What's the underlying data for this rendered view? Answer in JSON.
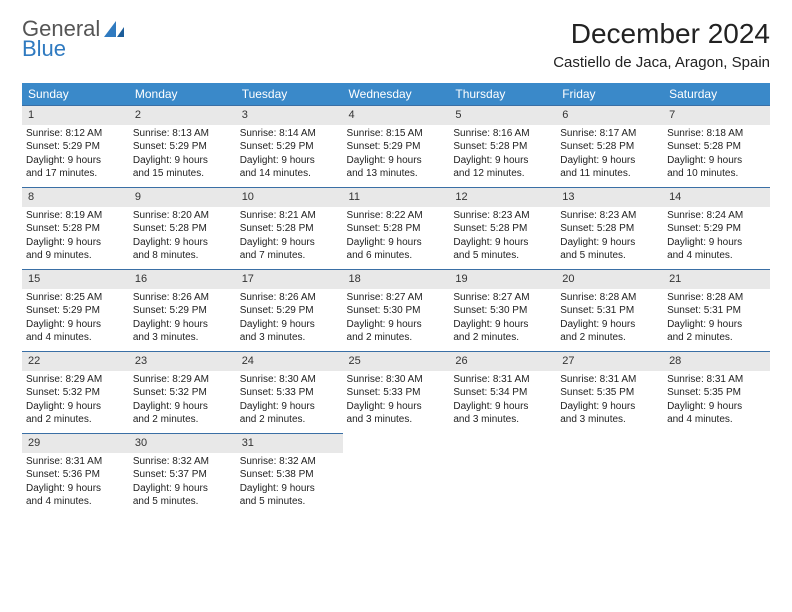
{
  "logo": {
    "text1": "General",
    "text2": "Blue"
  },
  "title": "December 2024",
  "location": "Castiello de Jaca, Aragon, Spain",
  "colors": {
    "header_bg": "#3a89c9",
    "header_fg": "#ffffff",
    "daynum_bg": "#e8e8e8",
    "rule": "#3a6fa5",
    "logo_gray": "#555555",
    "logo_blue": "#2f7ac0"
  },
  "weekdays": [
    "Sunday",
    "Monday",
    "Tuesday",
    "Wednesday",
    "Thursday",
    "Friday",
    "Saturday"
  ],
  "weeks": [
    [
      {
        "day": "1",
        "sunrise": "Sunrise: 8:12 AM",
        "sunset": "Sunset: 5:29 PM",
        "dl1": "Daylight: 9 hours",
        "dl2": "and 17 minutes."
      },
      {
        "day": "2",
        "sunrise": "Sunrise: 8:13 AM",
        "sunset": "Sunset: 5:29 PM",
        "dl1": "Daylight: 9 hours",
        "dl2": "and 15 minutes."
      },
      {
        "day": "3",
        "sunrise": "Sunrise: 8:14 AM",
        "sunset": "Sunset: 5:29 PM",
        "dl1": "Daylight: 9 hours",
        "dl2": "and 14 minutes."
      },
      {
        "day": "4",
        "sunrise": "Sunrise: 8:15 AM",
        "sunset": "Sunset: 5:29 PM",
        "dl1": "Daylight: 9 hours",
        "dl2": "and 13 minutes."
      },
      {
        "day": "5",
        "sunrise": "Sunrise: 8:16 AM",
        "sunset": "Sunset: 5:28 PM",
        "dl1": "Daylight: 9 hours",
        "dl2": "and 12 minutes."
      },
      {
        "day": "6",
        "sunrise": "Sunrise: 8:17 AM",
        "sunset": "Sunset: 5:28 PM",
        "dl1": "Daylight: 9 hours",
        "dl2": "and 11 minutes."
      },
      {
        "day": "7",
        "sunrise": "Sunrise: 8:18 AM",
        "sunset": "Sunset: 5:28 PM",
        "dl1": "Daylight: 9 hours",
        "dl2": "and 10 minutes."
      }
    ],
    [
      {
        "day": "8",
        "sunrise": "Sunrise: 8:19 AM",
        "sunset": "Sunset: 5:28 PM",
        "dl1": "Daylight: 9 hours",
        "dl2": "and 9 minutes."
      },
      {
        "day": "9",
        "sunrise": "Sunrise: 8:20 AM",
        "sunset": "Sunset: 5:28 PM",
        "dl1": "Daylight: 9 hours",
        "dl2": "and 8 minutes."
      },
      {
        "day": "10",
        "sunrise": "Sunrise: 8:21 AM",
        "sunset": "Sunset: 5:28 PM",
        "dl1": "Daylight: 9 hours",
        "dl2": "and 7 minutes."
      },
      {
        "day": "11",
        "sunrise": "Sunrise: 8:22 AM",
        "sunset": "Sunset: 5:28 PM",
        "dl1": "Daylight: 9 hours",
        "dl2": "and 6 minutes."
      },
      {
        "day": "12",
        "sunrise": "Sunrise: 8:23 AM",
        "sunset": "Sunset: 5:28 PM",
        "dl1": "Daylight: 9 hours",
        "dl2": "and 5 minutes."
      },
      {
        "day": "13",
        "sunrise": "Sunrise: 8:23 AM",
        "sunset": "Sunset: 5:28 PM",
        "dl1": "Daylight: 9 hours",
        "dl2": "and 5 minutes."
      },
      {
        "day": "14",
        "sunrise": "Sunrise: 8:24 AM",
        "sunset": "Sunset: 5:29 PM",
        "dl1": "Daylight: 9 hours",
        "dl2": "and 4 minutes."
      }
    ],
    [
      {
        "day": "15",
        "sunrise": "Sunrise: 8:25 AM",
        "sunset": "Sunset: 5:29 PM",
        "dl1": "Daylight: 9 hours",
        "dl2": "and 4 minutes."
      },
      {
        "day": "16",
        "sunrise": "Sunrise: 8:26 AM",
        "sunset": "Sunset: 5:29 PM",
        "dl1": "Daylight: 9 hours",
        "dl2": "and 3 minutes."
      },
      {
        "day": "17",
        "sunrise": "Sunrise: 8:26 AM",
        "sunset": "Sunset: 5:29 PM",
        "dl1": "Daylight: 9 hours",
        "dl2": "and 3 minutes."
      },
      {
        "day": "18",
        "sunrise": "Sunrise: 8:27 AM",
        "sunset": "Sunset: 5:30 PM",
        "dl1": "Daylight: 9 hours",
        "dl2": "and 2 minutes."
      },
      {
        "day": "19",
        "sunrise": "Sunrise: 8:27 AM",
        "sunset": "Sunset: 5:30 PM",
        "dl1": "Daylight: 9 hours",
        "dl2": "and 2 minutes."
      },
      {
        "day": "20",
        "sunrise": "Sunrise: 8:28 AM",
        "sunset": "Sunset: 5:31 PM",
        "dl1": "Daylight: 9 hours",
        "dl2": "and 2 minutes."
      },
      {
        "day": "21",
        "sunrise": "Sunrise: 8:28 AM",
        "sunset": "Sunset: 5:31 PM",
        "dl1": "Daylight: 9 hours",
        "dl2": "and 2 minutes."
      }
    ],
    [
      {
        "day": "22",
        "sunrise": "Sunrise: 8:29 AM",
        "sunset": "Sunset: 5:32 PM",
        "dl1": "Daylight: 9 hours",
        "dl2": "and 2 minutes."
      },
      {
        "day": "23",
        "sunrise": "Sunrise: 8:29 AM",
        "sunset": "Sunset: 5:32 PM",
        "dl1": "Daylight: 9 hours",
        "dl2": "and 2 minutes."
      },
      {
        "day": "24",
        "sunrise": "Sunrise: 8:30 AM",
        "sunset": "Sunset: 5:33 PM",
        "dl1": "Daylight: 9 hours",
        "dl2": "and 2 minutes."
      },
      {
        "day": "25",
        "sunrise": "Sunrise: 8:30 AM",
        "sunset": "Sunset: 5:33 PM",
        "dl1": "Daylight: 9 hours",
        "dl2": "and 3 minutes."
      },
      {
        "day": "26",
        "sunrise": "Sunrise: 8:31 AM",
        "sunset": "Sunset: 5:34 PM",
        "dl1": "Daylight: 9 hours",
        "dl2": "and 3 minutes."
      },
      {
        "day": "27",
        "sunrise": "Sunrise: 8:31 AM",
        "sunset": "Sunset: 5:35 PM",
        "dl1": "Daylight: 9 hours",
        "dl2": "and 3 minutes."
      },
      {
        "day": "28",
        "sunrise": "Sunrise: 8:31 AM",
        "sunset": "Sunset: 5:35 PM",
        "dl1": "Daylight: 9 hours",
        "dl2": "and 4 minutes."
      }
    ],
    [
      {
        "day": "29",
        "sunrise": "Sunrise: 8:31 AM",
        "sunset": "Sunset: 5:36 PM",
        "dl1": "Daylight: 9 hours",
        "dl2": "and 4 minutes."
      },
      {
        "day": "30",
        "sunrise": "Sunrise: 8:32 AM",
        "sunset": "Sunset: 5:37 PM",
        "dl1": "Daylight: 9 hours",
        "dl2": "and 5 minutes."
      },
      {
        "day": "31",
        "sunrise": "Sunrise: 8:32 AM",
        "sunset": "Sunset: 5:38 PM",
        "dl1": "Daylight: 9 hours",
        "dl2": "and 5 minutes."
      },
      null,
      null,
      null,
      null
    ]
  ]
}
